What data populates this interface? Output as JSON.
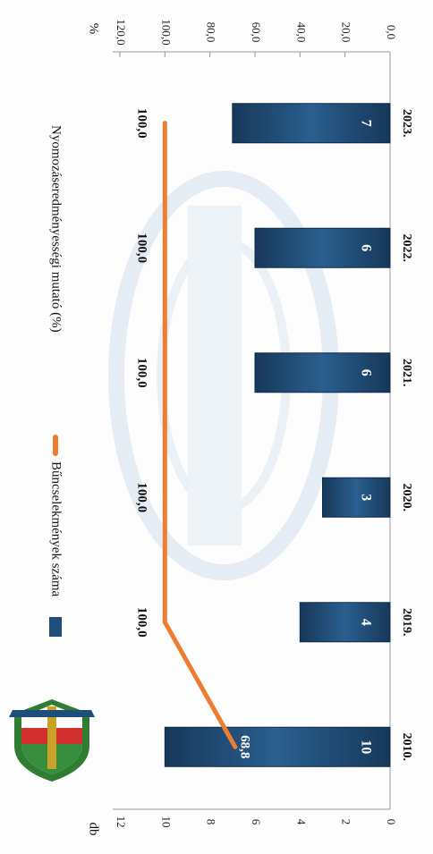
{
  "chart_data": {
    "type": "bar",
    "orientation": "rotated-90-clockwise",
    "categories": [
      "2010.",
      "2019.",
      "2020.",
      "2021.",
      "2022.",
      "2023."
    ],
    "series": [
      {
        "name": "Bűncselekmények száma",
        "kind": "bar",
        "axis": "left",
        "values": [
          10,
          4,
          3,
          6,
          6,
          7
        ],
        "labels": [
          "10",
          "4",
          "3",
          "6",
          "6",
          "7"
        ],
        "color": "#1f4e79"
      },
      {
        "name": "Nyomozáseredményességi mutató (%)",
        "kind": "line",
        "axis": "right",
        "values": [
          68.8,
          100.0,
          100.0,
          100.0,
          100.0,
          100.0
        ],
        "labels": [
          "68,8",
          "100,0",
          "100,0",
          "100,0",
          "100,0",
          "100,0"
        ],
        "color": "#ed7d31"
      }
    ],
    "left_axis": {
      "unit": "db",
      "range": [
        0,
        12
      ],
      "ticks": [
        "0",
        "2",
        "4",
        "6",
        "8",
        "10",
        "12"
      ]
    },
    "right_axis": {
      "unit": "%",
      "range": [
        0,
        120
      ],
      "ticks": [
        "0,0",
        "20,0",
        "40,0",
        "60,0",
        "80,0",
        "100,0",
        "120,0"
      ]
    },
    "legend": {
      "position": "left"
    },
    "logo_icon": "police-crest-icon"
  }
}
